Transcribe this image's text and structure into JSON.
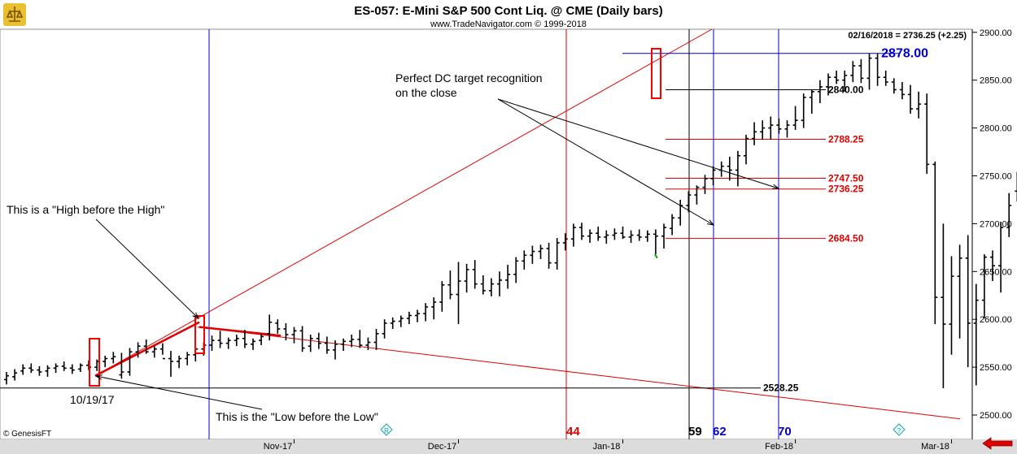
{
  "header": {
    "title": "ES-057:  E-Mini S&P 500 Cont Liq. @ CME  (Daily bars)",
    "subtitle": "www.TradeNavigator.com © 1999-2018"
  },
  "readout": "02/16/2018 = 2736.25 (+2.25)",
  "watermark": "© GenesisFT",
  "chart_data": {
    "type": "ohlc",
    "y_axis": {
      "min": 2490,
      "max": 2905,
      "ticks": [
        2500,
        2550,
        2600,
        2650,
        2700,
        2750,
        2800,
        2850,
        2900
      ],
      "tick_labels": [
        "2500.00",
        "2550.00",
        "2600.00",
        "2650.00",
        "2700.00",
        "2750.00",
        "2800.00",
        "2850.00",
        "2900.00"
      ]
    },
    "x_axis": {
      "labels": [
        "Nov-17",
        "Dec-17",
        "Jan-18",
        "Feb-18",
        "Mar-18"
      ],
      "label_bar_index": [
        35,
        55,
        75,
        96,
        115
      ]
    },
    "bars": [
      [
        2537,
        2532,
        2545,
        2541
      ],
      [
        2540,
        2536,
        2548,
        2544
      ],
      [
        2546,
        2542,
        2553,
        2549
      ],
      [
        2549,
        2544,
        2554,
        2547
      ],
      [
        2547,
        2541,
        2551,
        2545
      ],
      [
        2546,
        2540,
        2552,
        2549
      ],
      [
        2549,
        2544,
        2554,
        2551
      ],
      [
        2551,
        2546,
        2556,
        2549
      ],
      [
        2549,
        2543,
        2553,
        2547
      ],
      [
        2548,
        2545,
        2554,
        2552
      ],
      [
        2552,
        2547,
        2557,
        2550
      ],
      [
        2550,
        2546,
        2558,
        2556
      ],
      [
        2556,
        2550,
        2562,
        2559
      ],
      [
        2559,
        2554,
        2566,
        2561
      ],
      [
        2542,
        2538,
        2565,
        2545
      ],
      [
        2545,
        2541,
        2570,
        2566
      ],
      [
        2566,
        2560,
        2576,
        2572
      ],
      [
        2572,
        2564,
        2579,
        2566
      ],
      [
        2566,
        2560,
        2572,
        2569
      ],
      [
        2569,
        2563,
        2575,
        2559
      ],
      [
        2559,
        2540,
        2567,
        2556
      ],
      [
        2556,
        2549,
        2562,
        2559
      ],
      [
        2559,
        2552,
        2566,
        2563
      ],
      [
        2563,
        2556,
        2572,
        2569
      ],
      [
        2569,
        2562,
        2576,
        2573
      ],
      [
        2573,
        2567,
        2583,
        2578
      ],
      [
        2578,
        2570,
        2588,
        2575
      ],
      [
        2575,
        2569,
        2581,
        2578
      ],
      [
        2578,
        2572,
        2584,
        2580
      ],
      [
        2580,
        2570,
        2589,
        2574
      ],
      [
        2574,
        2568,
        2580,
        2577
      ],
      [
        2578,
        2573,
        2585,
        2582
      ],
      [
        2585,
        2578,
        2605,
        2597
      ],
      [
        2596,
        2585,
        2600,
        2590
      ],
      [
        2590,
        2578,
        2596,
        2584
      ],
      [
        2584,
        2575,
        2592,
        2588
      ],
      [
        2588,
        2566,
        2593,
        2570
      ],
      [
        2572,
        2566,
        2584,
        2580
      ],
      [
        2580,
        2569,
        2586,
        2575
      ],
      [
        2575,
        2564,
        2582,
        2568
      ],
      [
        2568,
        2558,
        2578,
        2574
      ],
      [
        2574,
        2567,
        2580,
        2577
      ],
      [
        2577,
        2571,
        2584,
        2579
      ],
      [
        2579,
        2570,
        2589,
        2573
      ],
      [
        2573,
        2568,
        2581,
        2576
      ],
      [
        2576,
        2568,
        2590,
        2585
      ],
      [
        2585,
        2580,
        2600,
        2596
      ],
      [
        2596,
        2590,
        2602,
        2598
      ],
      [
        2598,
        2592,
        2604,
        2601
      ],
      [
        2601,
        2595,
        2608,
        2604
      ],
      [
        2604,
        2597,
        2610,
        2606
      ],
      [
        2606,
        2598,
        2617,
        2613
      ],
      [
        2613,
        2600,
        2623,
        2618
      ],
      [
        2618,
        2608,
        2640,
        2636
      ],
      [
        2636,
        2621,
        2651,
        2626
      ],
      [
        2626,
        2595,
        2660,
        2640
      ],
      [
        2640,
        2628,
        2658,
        2652
      ],
      [
        2652,
        2632,
        2662,
        2637
      ],
      [
        2637,
        2626,
        2646,
        2630
      ],
      [
        2630,
        2624,
        2643,
        2637
      ],
      [
        2637,
        2624,
        2650,
        2641
      ],
      [
        2641,
        2632,
        2657,
        2647
      ],
      [
        2647,
        2638,
        2665,
        2661
      ],
      [
        2661,
        2652,
        2672,
        2667
      ],
      [
        2667,
        2658,
        2677,
        2671
      ],
      [
        2671,
        2663,
        2678,
        2674
      ],
      [
        2674,
        2653,
        2680,
        2659
      ],
      [
        2659,
        2652,
        2685,
        2680
      ],
      [
        2680,
        2672,
        2690,
        2684
      ],
      [
        2684,
        2676,
        2700,
        2696
      ],
      [
        2696,
        2683,
        2701,
        2687
      ],
      [
        2687,
        2680,
        2694,
        2690
      ],
      [
        2690,
        2682,
        2697,
        2686
      ],
      [
        2686,
        2679,
        2693,
        2688
      ],
      [
        2688,
        2683,
        2695,
        2690
      ],
      [
        2690,
        2684,
        2697,
        2686
      ],
      [
        2686,
        2680,
        2693,
        2688
      ],
      [
        2688,
        2682,
        2694,
        2686
      ],
      [
        2686,
        2681,
        2693,
        2689
      ],
      [
        2689,
        2668,
        2694,
        2687
      ],
      [
        2687,
        2674,
        2700,
        2696
      ],
      [
        2695,
        2688,
        2710,
        2706
      ],
      [
        2706,
        2698,
        2725,
        2719
      ],
      [
        2719,
        2712,
        2734,
        2730
      ],
      [
        2730,
        2720,
        2740,
        2738
      ],
      [
        2738,
        2731,
        2751,
        2747
      ],
      [
        2747,
        2740,
        2760,
        2756
      ],
      [
        2756,
        2749,
        2765,
        2760
      ],
      [
        2760,
        2745,
        2770,
        2756
      ],
      [
        2756,
        2739,
        2776,
        2771
      ],
      [
        2771,
        2762,
        2793,
        2789
      ],
      [
        2789,
        2782,
        2806,
        2796
      ],
      [
        2796,
        2788,
        2808,
        2800
      ],
      [
        2800,
        2788,
        2812,
        2803
      ],
      [
        2803,
        2794,
        2810,
        2799
      ],
      [
        2799,
        2790,
        2808,
        2803
      ],
      [
        2803,
        2798,
        2823,
        2808
      ],
      [
        2808,
        2800,
        2836,
        2832
      ],
      [
        2832,
        2815,
        2840,
        2838
      ],
      [
        2838,
        2826,
        2850,
        2843
      ],
      [
        2843,
        2834,
        2857,
        2853
      ],
      [
        2853,
        2846,
        2860,
        2850
      ],
      [
        2850,
        2838,
        2860,
        2855
      ],
      [
        2855,
        2848,
        2870,
        2865
      ],
      [
        2865,
        2847,
        2872,
        2852
      ],
      [
        2852,
        2840,
        2878,
        2873
      ],
      [
        2873,
        2844,
        2878,
        2853
      ],
      [
        2853,
        2844,
        2860,
        2848
      ],
      [
        2848,
        2836,
        2852,
        2840
      ],
      [
        2840,
        2830,
        2848,
        2835
      ],
      [
        2835,
        2815,
        2845,
        2820
      ],
      [
        2820,
        2810,
        2838,
        2825
      ],
      [
        2825,
        2752,
        2836,
        2762
      ],
      [
        2762,
        2595,
        2765,
        2623
      ],
      [
        2623,
        2528,
        2700,
        2595
      ],
      [
        2595,
        2563,
        2666,
        2645
      ],
      [
        2645,
        2580,
        2678,
        2664
      ],
      [
        2664,
        2550,
        2688,
        2596
      ],
      [
        2596,
        2531,
        2637,
        2620
      ],
      [
        2620,
        2601,
        2668,
        2665
      ],
      [
        2665,
        2640,
        2672,
        2656
      ],
      [
        2656,
        2628,
        2702,
        2696
      ],
      [
        2696,
        2686,
        2732,
        2719
      ],
      [
        2734,
        2723,
        2754,
        2736.25
      ]
    ],
    "levels": [
      {
        "label": "2878.00",
        "value": 2878.0
      },
      {
        "label": "2840.00",
        "value": 2840.0
      },
      {
        "label": "2788.25",
        "value": 2788.25
      },
      {
        "label": "2747.50",
        "value": 2747.5
      },
      {
        "label": "2736.25",
        "value": 2736.25
      },
      {
        "label": "2684.50",
        "value": 2684.5
      },
      {
        "label": "2528.25",
        "value": 2528.25
      }
    ],
    "time_markers": [
      "44",
      "59",
      "62",
      "70"
    ],
    "annotations": [
      "This is a \"High before the High\"",
      "This is the \"Low before the Low\"",
      "10/19/17",
      "Perfect DC target recognition",
      "on the close"
    ]
  },
  "colors": {
    "bars": "#000000",
    "up_tick": "#00aa00",
    "red_lines": "#e00000",
    "blue_lines": "#0000cc",
    "marker_box": "#ff0000"
  }
}
